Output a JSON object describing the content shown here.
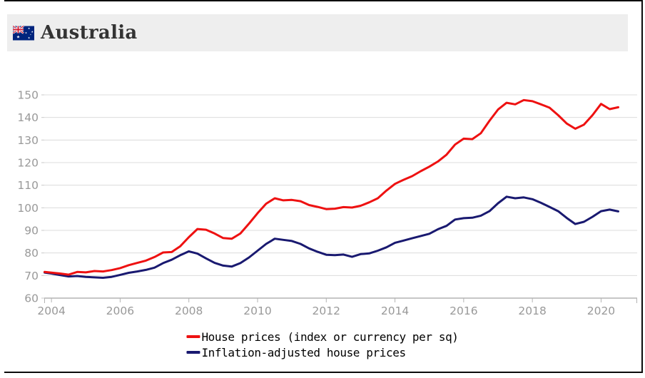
{
  "header": {
    "title": "Australia",
    "flag_icon": "australia-flag-icon"
  },
  "colors": {
    "frame_border": "#0b0b0b",
    "header_background": "#eeeeee",
    "gridline": "#dcdcdc",
    "axis_line": "#b3b3b3",
    "tick_label": "#999999",
    "house_prices_red": "#ee1111",
    "inflation_adjusted_navy": "#191970"
  },
  "chart_data": {
    "type": "line",
    "title": "",
    "xlabel": "",
    "ylabel": "",
    "grid": "horizontal",
    "legend_position": "bottom-center",
    "xlim": [
      2003.79,
      2021.05
    ],
    "ylim": [
      60,
      150
    ],
    "xticks": [
      2004,
      2006,
      2008,
      2010,
      2012,
      2014,
      2016,
      2018,
      2020
    ],
    "yticks": [
      60,
      70,
      80,
      90,
      100,
      110,
      120,
      130,
      140,
      150
    ],
    "x": [
      2003.8,
      2004,
      2004.25,
      2004.5,
      2004.75,
      2005,
      2005.25,
      2005.5,
      2005.75,
      2006,
      2006.25,
      2006.5,
      2006.75,
      2007,
      2007.25,
      2007.5,
      2007.75,
      2008,
      2008.25,
      2008.5,
      2008.75,
      2009,
      2009.25,
      2009.5,
      2009.75,
      2010,
      2010.25,
      2010.5,
      2010.75,
      2011,
      2011.25,
      2011.5,
      2011.75,
      2012,
      2012.25,
      2012.5,
      2012.75,
      2013,
      2013.25,
      2013.5,
      2013.75,
      2014,
      2014.25,
      2014.5,
      2014.75,
      2015,
      2015.25,
      2015.5,
      2015.75,
      2016,
      2016.25,
      2016.5,
      2016.75,
      2017,
      2017.25,
      2017.5,
      2017.75,
      2018,
      2018.25,
      2018.5,
      2018.75,
      2019,
      2019.25,
      2019.5,
      2019.75,
      2020,
      2020.25,
      2020.5
    ],
    "series": [
      {
        "name": "House prices (index or currency per sq)",
        "color": "#ee1111",
        "values": [
          71.6,
          71.3,
          70.9,
          70.4,
          71.6,
          71.4,
          72.0,
          71.8,
          72.4,
          73.3,
          74.6,
          75.6,
          76.6,
          78.2,
          80.2,
          80.4,
          83.0,
          87.0,
          90.6,
          90.3,
          88.6,
          86.6,
          86.3,
          88.6,
          93.0,
          97.6,
          101.8,
          104.2,
          103.3,
          103.5,
          102.9,
          101.2,
          100.4,
          99.4,
          99.6,
          100.3,
          100.1,
          100.9,
          102.4,
          104.2,
          107.6,
          110.6,
          112.4,
          114.0,
          116.2,
          118.2,
          120.5,
          123.5,
          128.0,
          130.6,
          130.4,
          133.0,
          138.5,
          143.5,
          146.5,
          145.8,
          147.7,
          147.2,
          145.8,
          144.3,
          141.0,
          137.3,
          135.0,
          136.8,
          141.0,
          146.0,
          143.7,
          144.5
        ]
      },
      {
        "name": "Inflation-adjusted house prices",
        "color": "#191970",
        "values": [
          71.3,
          70.9,
          70.2,
          69.6,
          69.8,
          69.4,
          69.2,
          69.0,
          69.4,
          70.3,
          71.2,
          71.8,
          72.5,
          73.5,
          75.5,
          77.0,
          79.0,
          80.7,
          79.7,
          77.6,
          75.6,
          74.4,
          74.0,
          75.5,
          78.0,
          81.0,
          84.0,
          86.3,
          85.8,
          85.3,
          84.0,
          82.0,
          80.5,
          79.2,
          79.0,
          79.3,
          78.3,
          79.5,
          79.8,
          81.0,
          82.5,
          84.5,
          85.5,
          86.5,
          87.5,
          88.5,
          90.5,
          92.0,
          94.8,
          95.4,
          95.6,
          96.5,
          98.5,
          102.0,
          104.9,
          104.2,
          104.6,
          103.8,
          102.2,
          100.4,
          98.5,
          95.5,
          92.8,
          93.8,
          96.0,
          98.5,
          99.2,
          98.4
        ]
      }
    ]
  }
}
